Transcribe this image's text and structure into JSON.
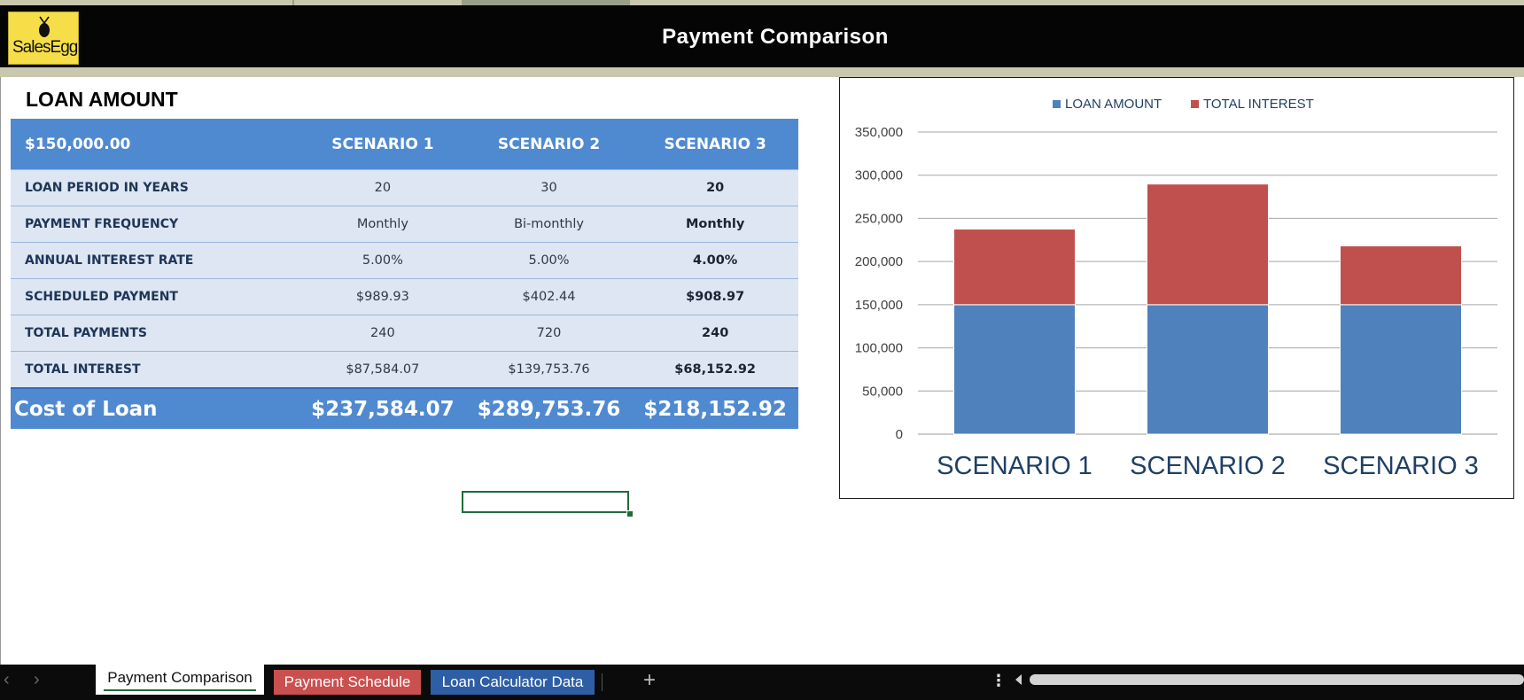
{
  "header": {
    "title": "Payment Comparison",
    "logo_text": "SalesEgg"
  },
  "section_title": "LOAN AMOUNT",
  "table": {
    "loan_amount": "$150,000.00",
    "columns": [
      "SCENARIO 1",
      "SCENARIO 2",
      "SCENARIO 3"
    ],
    "rows": [
      {
        "label": "LOAN PERIOD IN YEARS",
        "values": [
          "20",
          "30",
          "20"
        ]
      },
      {
        "label": "PAYMENT FREQUENCY",
        "values": [
          "Monthly",
          "Bi-monthly",
          "Monthly"
        ]
      },
      {
        "label": "ANNUAL INTEREST RATE",
        "values": [
          "5.00%",
          "5.00%",
          "4.00%"
        ]
      },
      {
        "label": "SCHEDULED PAYMENT",
        "values": [
          "$989.93",
          "$402.44",
          "$908.97"
        ]
      },
      {
        "label": "TOTAL PAYMENTS",
        "values": [
          "240",
          "720",
          "240"
        ]
      },
      {
        "label": "TOTAL INTEREST",
        "values": [
          "$87,584.07",
          "$139,753.76",
          "$68,152.92"
        ]
      }
    ],
    "total": {
      "label": "Cost of Loan",
      "values": [
        "$237,584.07",
        "$289,753.76",
        "$218,152.92"
      ]
    }
  },
  "chart_data": {
    "type": "bar",
    "stacked": true,
    "categories": [
      "SCENARIO 1",
      "SCENARIO 2",
      "SCENARIO 3"
    ],
    "series": [
      {
        "name": "LOAN AMOUNT",
        "values": [
          150000,
          150000,
          150000
        ],
        "color": "#4f81bd"
      },
      {
        "name": "TOTAL INTEREST",
        "values": [
          87584.07,
          139753.76,
          68152.92
        ],
        "color": "#c0504d"
      }
    ],
    "ylim": [
      0,
      350000
    ],
    "yticks": [
      0,
      50000,
      100000,
      150000,
      200000,
      250000,
      300000,
      350000
    ],
    "ytick_labels": [
      "0",
      "50,000",
      "100,000",
      "150,000",
      "200,000",
      "250,000",
      "300,000",
      "350,000"
    ],
    "grid": true,
    "legend": "top"
  },
  "sheet_tabs": [
    {
      "label": "Payment Comparison",
      "active": true
    },
    {
      "label": "Payment Schedule",
      "color": "#c9504e"
    },
    {
      "label": "Loan Calculator Data",
      "color": "#2e5fa5"
    }
  ],
  "tabbar": {
    "add_label": "+",
    "menu_label": "⋮",
    "prev_label": "‹",
    "next_label": "›"
  }
}
